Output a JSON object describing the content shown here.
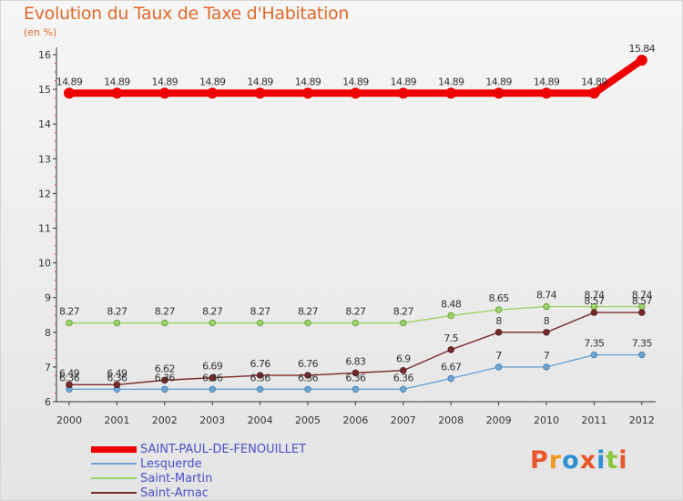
{
  "title": "Evolution du Taux de Taxe d'Habitation",
  "subtitle": "(en %)",
  "logo": {
    "text": "Proxiti",
    "colors": [
      "#e8562a",
      "#f29a1f",
      "#2f8fd0",
      "#e8562a",
      "#2f8fd0",
      "#8cc63e",
      "#e8562a"
    ]
  },
  "chart_data": {
    "type": "line",
    "x": [
      "2000",
      "2001",
      "2002",
      "2003",
      "2004",
      "2005",
      "2006",
      "2007",
      "2008",
      "2009",
      "2010",
      "2011",
      "2012"
    ],
    "ylim": [
      6,
      16
    ],
    "yticks": [
      "6",
      "7",
      "8",
      "9",
      "10",
      "11",
      "12",
      "13",
      "14",
      "15",
      "16"
    ],
    "grid": false,
    "legend_position": "bottom-left",
    "series": [
      {
        "name": "SAINT-PAUL-DE-FENOUILLET",
        "color": "#ee0000",
        "values": [
          14.89,
          14.89,
          14.89,
          14.89,
          14.89,
          14.89,
          14.89,
          14.89,
          14.89,
          14.89,
          14.89,
          14.89,
          15.84
        ],
        "labels": [
          "14.89",
          "14.89",
          "14.89",
          "14.89",
          "14.89",
          "14.89",
          "14.89",
          "14.89",
          "14.89",
          "14.89",
          "14.89",
          "14.89",
          "15.84"
        ]
      },
      {
        "name": "Lesquerde",
        "color": "#6fa4d2",
        "values": [
          6.36,
          6.36,
          6.36,
          6.36,
          6.36,
          6.36,
          6.36,
          6.36,
          6.67,
          7,
          7,
          7.35,
          7.35
        ],
        "labels": [
          "6.36",
          "6.36",
          "6.36",
          "6.36",
          "6.36",
          "6.36",
          "6.36",
          "6.36",
          "6.67",
          "7",
          "7",
          "7.35",
          "7.35"
        ]
      },
      {
        "name": "Saint-Martin",
        "color": "#9ed26a",
        "values": [
          8.27,
          8.27,
          8.27,
          8.27,
          8.27,
          8.27,
          8.27,
          8.27,
          8.48,
          8.65,
          8.74,
          8.74,
          8.74
        ],
        "labels": [
          "8.27",
          "8.27",
          "8.27",
          "8.27",
          "8.27",
          "8.27",
          "8.27",
          "8.27",
          "8.48",
          "8.65",
          "8.74",
          "8.74",
          "8.74"
        ]
      },
      {
        "name": "Saint-Arnac",
        "color": "#7a2a2a",
        "values": [
          6.49,
          6.49,
          6.62,
          6.69,
          6.76,
          6.76,
          6.83,
          6.9,
          7.5,
          8,
          8,
          8.57,
          8.57
        ],
        "labels": [
          "6.49",
          "6.49",
          "6.62",
          "6.69",
          "6.76",
          "6.76",
          "6.83",
          "6.9",
          "7.5",
          "8",
          "8",
          "8.57",
          "8.57"
        ]
      }
    ]
  }
}
